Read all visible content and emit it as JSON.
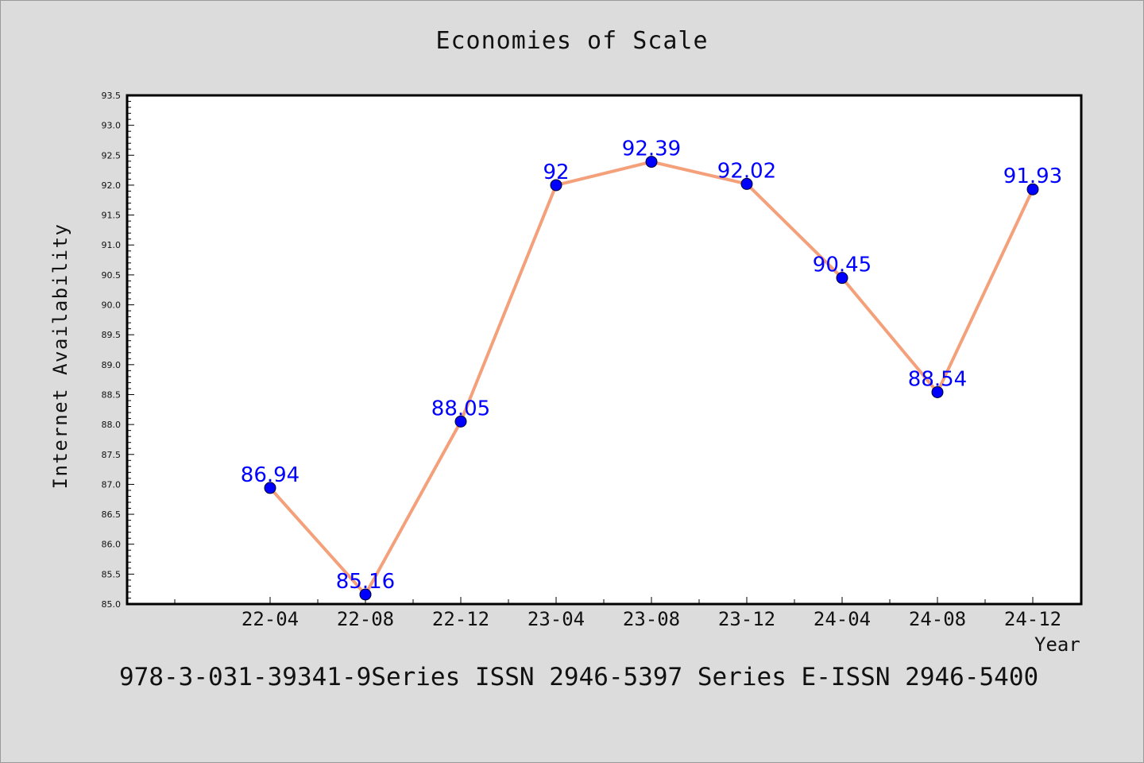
{
  "chart_data": {
    "type": "line",
    "title": "Economies of Scale",
    "xlabel": "Year",
    "ylabel": "Internet Availability",
    "categories": [
      "22-04",
      "22-08",
      "22-12",
      "23-04",
      "23-08",
      "23-12",
      "24-04",
      "24-08",
      "24-12"
    ],
    "series": [
      {
        "values": [
          86.94,
          85.16,
          88.05,
          92,
          92.39,
          92.02,
          90.45,
          88.54,
          91.93
        ],
        "data_labels": [
          "86.94",
          "85.16",
          "88.05",
          "92",
          "92.39",
          "92.02",
          "90.45",
          "88.54",
          "91.93"
        ],
        "line_color": "#f4a07a",
        "marker_color": "#0000ff",
        "label_color": "#0000ff"
      }
    ],
    "ylim": [
      85.0,
      93.5
    ],
    "yticks": [
      "85.0",
      "85.5",
      "86.0",
      "86.5",
      "87.0",
      "87.5",
      "88.0",
      "88.5",
      "89.0",
      "89.5",
      "90.0",
      "90.5",
      "91.0",
      "91.5",
      "92.0",
      "92.5",
      "93.0",
      "93.5"
    ],
    "grid": false,
    "legend": "none"
  },
  "footer": {
    "text": "978-3-031-39341-9Series ISSN 2946-5397 Series E-ISSN 2946-5400"
  }
}
